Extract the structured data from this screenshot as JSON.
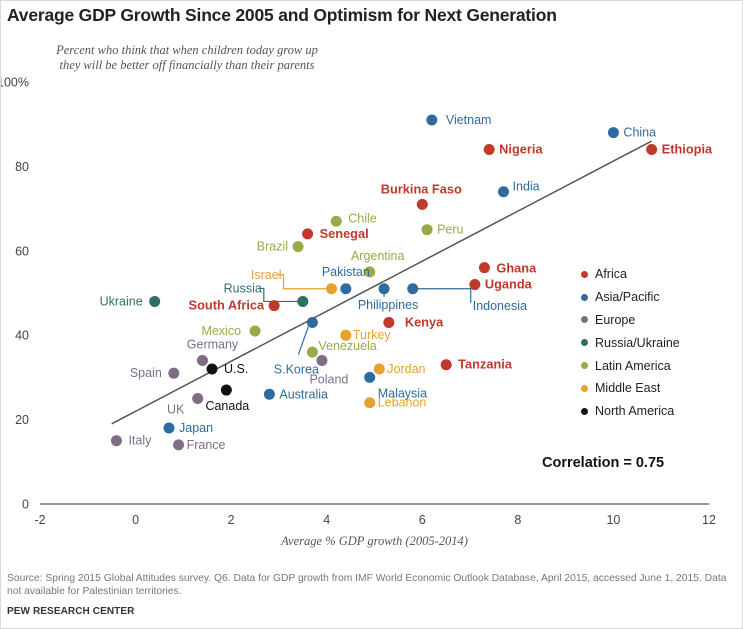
{
  "title": "Average GDP Growth Since 2005 and Optimism for Next Generation",
  "subtitle": [
    "Percent who think that when children today grow up",
    "they will be better off financially than their parents"
  ],
  "source": "Source: Spring 2015 Global Attitudes survey. Q6. Data for GDP growth from IMF World Economic Outlook Database, April 2015, accessed June 1, 2015. Data not available for Palestinian territories.",
  "brand": "PEW RESEARCH CENTER",
  "correlation_label": "Correlation = 0.75",
  "colors": {
    "Africa": "#c0392b",
    "Asia/Pacific": "#2e6b9e",
    "Europe": "#7f6d86",
    "Russia/Ukraine": "#2f6f6a",
    "Latin America": "#9aaa4a",
    "Middle East": "#e7a22b",
    "North America": "#111111",
    "trendline": "#555555",
    "axis": "#333333",
    "tick": "#444444"
  },
  "legend": [
    {
      "label": "Africa",
      "region": "Africa"
    },
    {
      "label": "Asia/Pacific",
      "region": "Asia/Pacific"
    },
    {
      "label": "Europe",
      "region": "Europe"
    },
    {
      "label": "Russia/Ukraine",
      "region": "Russia/Ukraine"
    },
    {
      "label": "Latin America",
      "region": "Latin America"
    },
    {
      "label": "Middle East",
      "region": "Middle East"
    },
    {
      "label": "North America",
      "region": "North America"
    }
  ],
  "chart_data": {
    "type": "scatter",
    "title": "Average GDP Growth Since 2005 and Optimism for Next Generation",
    "xlabel": "Average % GDP growth (2005-2014)",
    "ylabel": "Percent who think that when children today grow up they will be better off financially than their parents",
    "xlim": [
      -2,
      12
    ],
    "ylim": [
      0,
      100
    ],
    "x_ticks": [
      -2,
      0,
      2,
      4,
      6,
      8,
      10,
      12
    ],
    "y_ticks": [
      0,
      20,
      40,
      60,
      80,
      100
    ],
    "y_tick_labels": [
      "0",
      "20",
      "40",
      "60",
      "80",
      "100%"
    ],
    "grid": false,
    "legend_position": "right",
    "trendline": {
      "x": [
        -0.5,
        10.8
      ],
      "y": [
        19,
        86
      ]
    },
    "correlation": 0.75,
    "points": [
      {
        "label": "Vietnam",
        "region": "Asia/Pacific",
        "x": 6.2,
        "y": 91
      },
      {
        "label": "China",
        "region": "Asia/Pacific",
        "x": 10.0,
        "y": 88
      },
      {
        "label": "Nigeria",
        "region": "Africa",
        "x": 7.4,
        "y": 84
      },
      {
        "label": "Ethiopia",
        "region": "Africa",
        "x": 10.8,
        "y": 84
      },
      {
        "label": "India",
        "region": "Asia/Pacific",
        "x": 7.7,
        "y": 74
      },
      {
        "label": "Burkina Faso",
        "region": "Africa",
        "x": 6.0,
        "y": 71
      },
      {
        "label": "Chile",
        "region": "Latin America",
        "x": 4.2,
        "y": 67
      },
      {
        "label": "Peru",
        "region": "Latin America",
        "x": 6.1,
        "y": 65
      },
      {
        "label": "Senegal",
        "region": "Africa",
        "x": 3.6,
        "y": 64
      },
      {
        "label": "Brazil",
        "region": "Latin America",
        "x": 3.4,
        "y": 61
      },
      {
        "label": "Ghana",
        "region": "Africa",
        "x": 7.3,
        "y": 56
      },
      {
        "label": "Argentina",
        "region": "Latin America",
        "x": 4.9,
        "y": 55
      },
      {
        "label": "Uganda",
        "region": "Africa",
        "x": 7.1,
        "y": 52
      },
      {
        "label": "Israel",
        "region": "Middle East",
        "x": 4.1,
        "y": 51
      },
      {
        "label": "Pakistan",
        "region": "Asia/Pacific",
        "x": 4.4,
        "y": 51
      },
      {
        "label": "Philippines",
        "region": "Asia/Pacific",
        "x": 5.2,
        "y": 51
      },
      {
        "label": "Indonesia",
        "region": "Asia/Pacific",
        "x": 5.8,
        "y": 51
      },
      {
        "label": "Ukraine",
        "region": "Russia/Ukraine",
        "x": 0.4,
        "y": 48
      },
      {
        "label": "Russia",
        "region": "Russia/Ukraine",
        "x": 3.5,
        "y": 48
      },
      {
        "label": "South Africa",
        "region": "Africa",
        "x": 2.9,
        "y": 47
      },
      {
        "label": "Kenya",
        "region": "Africa",
        "x": 5.3,
        "y": 43
      },
      {
        "label": "S.Korea",
        "region": "Asia/Pacific",
        "x": 3.7,
        "y": 43
      },
      {
        "label": "Mexico",
        "region": "Latin America",
        "x": 2.5,
        "y": 41
      },
      {
        "label": "Turkey",
        "region": "Middle East",
        "x": 4.4,
        "y": 40
      },
      {
        "label": "Venezuela",
        "region": "Latin America",
        "x": 3.7,
        "y": 36
      },
      {
        "label": "Germany",
        "region": "Europe",
        "x": 1.4,
        "y": 34
      },
      {
        "label": "Poland",
        "region": "Europe",
        "x": 3.9,
        "y": 34
      },
      {
        "label": "Tanzania",
        "region": "Africa",
        "x": 6.5,
        "y": 33
      },
      {
        "label": "Jordan",
        "region": "Middle East",
        "x": 5.1,
        "y": 32
      },
      {
        "label": "U.S.",
        "region": "North America",
        "x": 1.6,
        "y": 32
      },
      {
        "label": "Spain",
        "region": "Europe",
        "x": 0.8,
        "y": 31
      },
      {
        "label": "Malaysia",
        "region": "Asia/Pacific",
        "x": 4.9,
        "y": 30
      },
      {
        "label": "Canada",
        "region": "North America",
        "x": 1.9,
        "y": 27
      },
      {
        "label": "Australia",
        "region": "Asia/Pacific",
        "x": 2.8,
        "y": 26
      },
      {
        "label": "UK",
        "region": "Europe",
        "x": 1.3,
        "y": 25
      },
      {
        "label": "Lebanon",
        "region": "Middle East",
        "x": 4.9,
        "y": 24
      },
      {
        "label": "Japan",
        "region": "Asia/Pacific",
        "x": 0.7,
        "y": 18
      },
      {
        "label": "Italy",
        "region": "Europe",
        "x": -0.4,
        "y": 15
      },
      {
        "label": "France",
        "region": "Europe",
        "x": 0.9,
        "y": 14
      }
    ]
  }
}
